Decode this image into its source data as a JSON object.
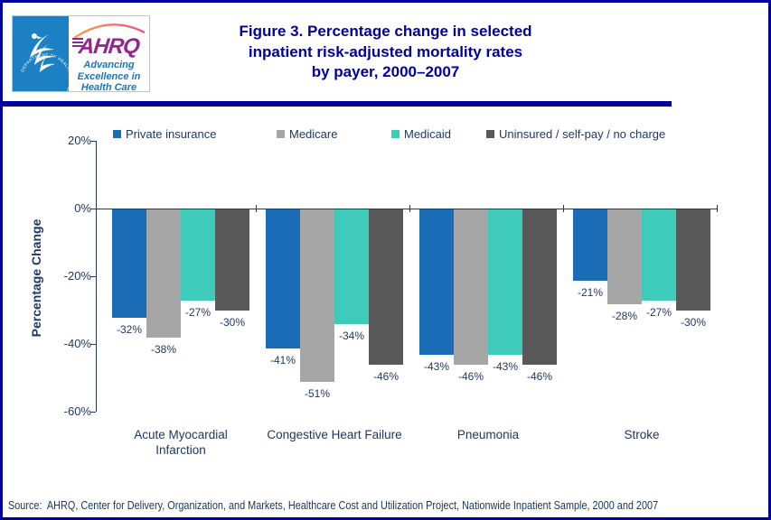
{
  "header": {
    "logo": {
      "hhs_seal_text": "DEPARTMENT OF HEALTH & HUMAN SERVICES · USA",
      "wordmark": "AHRQ",
      "tagline_line1": "Advancing",
      "tagline_line2": "Excellence in",
      "tagline_line3": "Health Care"
    },
    "title_line1": "Figure 3. Percentage change in selected",
    "title_line2": "inpatient risk-adjusted mortality rates",
    "title_line3": "by payer, 2000–2007"
  },
  "chart_data": {
    "type": "bar",
    "title": "Figure 3. Percentage change in selected inpatient risk-adjusted mortality rates by payer, 2000–2007",
    "ylabel": "Percentage Change",
    "xlabel": "",
    "ylim": [
      -60,
      20
    ],
    "ytick_step": 20,
    "yticks": [
      "20%",
      "0%",
      "-20%",
      "-40%",
      "-60%"
    ],
    "grid": false,
    "legend_position": "top",
    "value_label_format": "{v}%",
    "categories": [
      "Acute Myocardial Infarction",
      "Congestive Heart Failure",
      "Pneumonia",
      "Stroke"
    ],
    "xtick_display": [
      "Acute Myocardial\nInfarction",
      "Congestive Heart Failure",
      "Pneumonia",
      "Stroke"
    ],
    "series": [
      {
        "name": "Private insurance",
        "color": "#1b6cb7",
        "values": [
          -32,
          -41,
          -43,
          -21
        ]
      },
      {
        "name": "Medicare",
        "color": "#a6a6a6",
        "values": [
          -38,
          -51,
          -46,
          -28
        ]
      },
      {
        "name": "Medicaid",
        "color": "#3fcbba",
        "values": [
          -27,
          -34,
          -43,
          -27
        ]
      },
      {
        "name": "Uninsured / self-pay / no charge",
        "color": "#595959",
        "values": [
          -30,
          -46,
          -46,
          -30
        ]
      }
    ]
  },
  "footer": {
    "source": "Source:  AHRQ, Center for Delivery, Organization, and Markets, Healthcare Cost and Utilization Project, Nationwide Inpatient Sample, 2000 and 2007"
  },
  "colors": {
    "navy": "#00009c",
    "ink": "#1f3864",
    "source-navy": "#17365d",
    "logo-blue": "#1c80c2",
    "ahrq-purple": "#90278e",
    "tagline-blue": "#1b75bc"
  }
}
